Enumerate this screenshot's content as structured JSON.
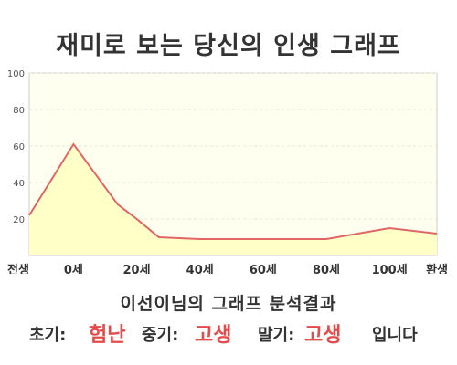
{
  "title": "재미로 보는 당신의 인생 그래프",
  "subtitle": "이선이님의 그래프 분석결과",
  "result": {
    "early_label": "초기:",
    "early_value": "험난",
    "middle_label": "중기:",
    "middle_value": "고생",
    "late_label": "말기:",
    "late_value": "고생",
    "suffix": "입니다"
  },
  "colors": {
    "line": "#e06666",
    "fill": "#ffffc8",
    "plot_bg": "#fffff0",
    "accent": "#e64b4b"
  },
  "chart_data": {
    "type": "area",
    "categories": [
      "전생",
      "0세",
      "20세",
      "40세",
      "60세",
      "80세",
      "100세",
      "환생"
    ],
    "x": [
      -14,
      0,
      14,
      20,
      27,
      40,
      60,
      80,
      100,
      115
    ],
    "values": [
      22,
      61,
      28,
      20,
      10,
      9,
      9,
      9,
      15,
      12
    ],
    "x_ticks": [
      {
        "label": "전생",
        "x": -14
      },
      {
        "label": "0세",
        "x": 0
      },
      {
        "label": "20세",
        "x": 20
      },
      {
        "label": "40세",
        "x": 40
      },
      {
        "label": "60세",
        "x": 60
      },
      {
        "label": "80세",
        "x": 80
      },
      {
        "label": "100세",
        "x": 100
      },
      {
        "label": "환생",
        "x": 115
      }
    ],
    "y_ticks": [
      20,
      40,
      60,
      80,
      100
    ],
    "ylim": [
      0,
      100
    ],
    "xlim": [
      -14,
      115
    ],
    "grid": true
  }
}
